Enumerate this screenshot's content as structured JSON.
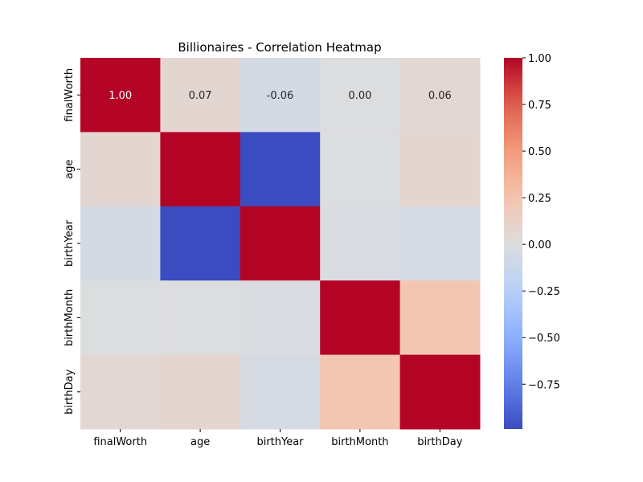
{
  "chart_data": {
    "type": "heatmap",
    "title": "Billionaires - Correlation Heatmap",
    "xlabel": "",
    "ylabel": "",
    "x_categories": [
      "finalWorth",
      "age",
      "birthYear",
      "birthMonth",
      "birthDay"
    ],
    "y_categories": [
      "finalWorth",
      "age",
      "birthYear",
      "birthMonth",
      "birthDay"
    ],
    "values": [
      [
        1.0,
        0.07,
        -0.06,
        0.0,
        0.06
      ],
      [
        0.07,
        1.0,
        -0.99,
        0.0,
        0.08
      ],
      [
        -0.06,
        -0.99,
        1.0,
        -0.02,
        -0.05
      ],
      [
        0.0,
        0.0,
        -0.02,
        1.0,
        0.23
      ],
      [
        0.06,
        0.08,
        -0.05,
        0.23,
        1.0
      ]
    ],
    "annotated_row": 0,
    "value_labels": [
      "1.00",
      "0.07",
      "-0.06",
      "0.00",
      "0.06"
    ],
    "colormap": "coolwarm",
    "value_range": [
      -0.99,
      1.0
    ],
    "colorbar": {
      "ticks": [
        1.0,
        0.75,
        0.5,
        0.25,
        0.0,
        -0.25,
        -0.5,
        -0.75
      ],
      "tick_labels": [
        "1.00",
        "0.75",
        "0.50",
        "0.25",
        "0.00",
        "−0.25",
        "−0.50",
        "−0.75"
      ]
    }
  }
}
